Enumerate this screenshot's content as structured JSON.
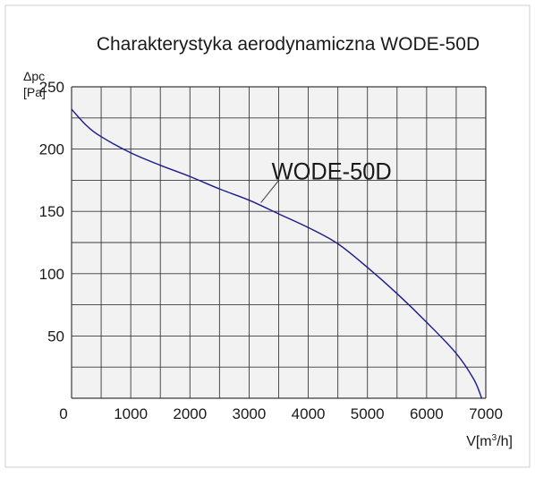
{
  "chart_data": {
    "type": "line",
    "title": "Charakterystyka aerodynamiczna WODE-50D",
    "ylabel_line1": "Δpc",
    "ylabel_line2": "[Pa]",
    "xlabel": "V[m",
    "xlabel_sup": "3",
    "xlabel_tail": "/h]",
    "xlim": [
      0,
      7000
    ],
    "ylim": [
      0,
      250
    ],
    "x_ticks": [
      "0",
      "1000",
      "2000",
      "3000",
      "4000",
      "5000",
      "6000",
      "7000"
    ],
    "y_ticks": [
      "50",
      "100",
      "150",
      "200",
      "250"
    ],
    "grid": true,
    "series": [
      {
        "name": "WODE-50D",
        "color": "#1a1a8c",
        "x": [
          0,
          250,
          500,
          1000,
          1500,
          2000,
          2500,
          3000,
          3500,
          4000,
          4500,
          5000,
          5500,
          6000,
          6500,
          6800,
          6930
        ],
        "y": [
          232,
          219,
          210,
          197,
          187,
          178,
          168,
          159,
          148,
          137,
          124,
          105,
          84,
          61,
          36,
          15,
          0
        ]
      }
    ],
    "annotation": {
      "text": "WODE-50D",
      "x": 3200,
      "y": 157
    },
    "plot_background": "#f2f2f2",
    "grid_color": "#3a3a3a"
  }
}
